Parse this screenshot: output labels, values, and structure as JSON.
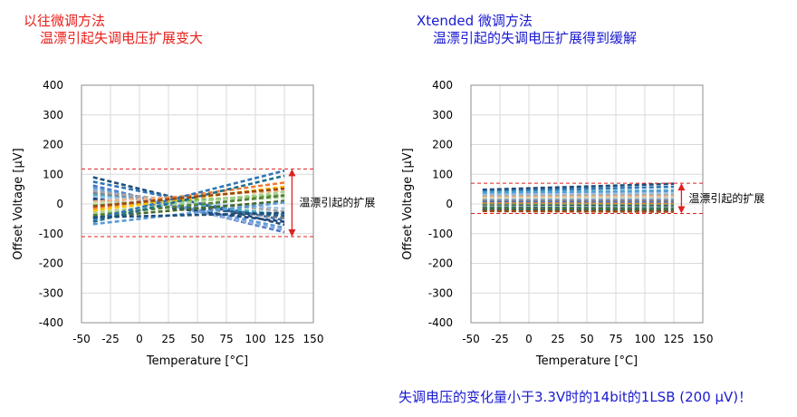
{
  "left_title": {
    "line1": "以往微调方法",
    "line2": "温漂引起失调电压扩展变大"
  },
  "right_title": {
    "line1": "Xtended 微调方法",
    "line2": "温漂引起的失调电压扩展得到缓解"
  },
  "footnote": "失调电压的变化量小于3.3V时的14bit的1LSB (200 µV)！",
  "colors": {
    "left_title": "#e8201c",
    "right_title": "#1a1ad0",
    "limit_line": "#e02020",
    "grid": "#d9d9d9"
  },
  "chart_data": [
    {
      "type": "line",
      "xlabel": "Temperature [°C]",
      "ylabel": "Offset Voltage [µV]",
      "xlim": [
        -50,
        150
      ],
      "ylim": [
        -400,
        400
      ],
      "xticks": [
        "-50",
        "-25",
        "0",
        "25",
        "50",
        "75",
        "100",
        "125",
        "150"
      ],
      "yticks": [
        "400",
        "300",
        "200",
        "100",
        "0",
        "-100",
        "-200",
        "-300",
        "-400"
      ],
      "grid": true,
      "spread_upper": 118,
      "spread_lower": -110,
      "annotation": "温漂引起的扩展",
      "series": [
        {
          "color": "#1f4e79",
          "x": [
            -40,
            125
          ],
          "y": [
            90,
            -70
          ]
        },
        {
          "color": "#2e75b6",
          "x": [
            -40,
            125
          ],
          "y": [
            75,
            -55
          ]
        },
        {
          "color": "#4472c4",
          "x": [
            -40,
            125
          ],
          "y": [
            62,
            -95
          ]
        },
        {
          "color": "#5b9bd5",
          "x": [
            -40,
            125
          ],
          "y": [
            55,
            -80
          ]
        },
        {
          "color": "#8faadc",
          "x": [
            -40,
            125
          ],
          "y": [
            48,
            -88
          ]
        },
        {
          "color": "#a5a5a5",
          "x": [
            -40,
            125
          ],
          "y": [
            42,
            -25
          ]
        },
        {
          "color": "#7f7f7f",
          "x": [
            -40,
            125
          ],
          "y": [
            36,
            -48
          ]
        },
        {
          "color": "#4bacc6",
          "x": [
            -40,
            125
          ],
          "y": [
            30,
            -35
          ]
        },
        {
          "color": "#9dc3e6",
          "x": [
            -40,
            125
          ],
          "y": [
            24,
            -15
          ]
        },
        {
          "color": "#264478",
          "x": [
            -40,
            125
          ],
          "y": [
            18,
            -60
          ]
        },
        {
          "color": "#255e91",
          "x": [
            -40,
            125
          ],
          "y": [
            12,
            -40
          ]
        },
        {
          "color": "#f4b183",
          "x": [
            -40,
            125
          ],
          "y": [
            8,
            45
          ]
        },
        {
          "color": "#c5e0b4",
          "x": [
            -40,
            125
          ],
          "y": [
            2,
            20
          ]
        },
        {
          "color": "#70ad47",
          "x": [
            -40,
            125
          ],
          "y": [
            -5,
            30
          ]
        },
        {
          "color": "#ed7d31",
          "x": [
            -40,
            125
          ],
          "y": [
            -15,
            72
          ]
        },
        {
          "color": "#ffc000",
          "x": [
            -40,
            125
          ],
          "y": [
            -22,
            58
          ]
        },
        {
          "color": "#a9d18e",
          "x": [
            -40,
            125
          ],
          "y": [
            -30,
            40
          ]
        },
        {
          "color": "#548235",
          "x": [
            -40,
            125
          ],
          "y": [
            -38,
            28
          ]
        },
        {
          "color": "#43682b",
          "x": [
            -40,
            125
          ],
          "y": [
            -45,
            10
          ]
        },
        {
          "color": "#2e75b6",
          "x": [
            -40,
            125
          ],
          "y": [
            -52,
            112
          ]
        },
        {
          "color": "#1f6f8b",
          "x": [
            -40,
            125
          ],
          "y": [
            -60,
            95
          ]
        },
        {
          "color": "#5b9bd5",
          "x": [
            -40,
            125
          ],
          "y": [
            -68,
            5
          ]
        },
        {
          "color": "#9e480e",
          "x": [
            -40,
            125
          ],
          "y": [
            -8,
            52
          ]
        },
        {
          "color": "#1f4e79",
          "x": [
            -40,
            125
          ],
          "y": [
            -45,
            -30
          ]
        }
      ]
    },
    {
      "type": "line",
      "xlabel": "Temperature [°C]",
      "ylabel": "Offset Voltage [µV]",
      "xlim": [
        -50,
        150
      ],
      "ylim": [
        -400,
        400
      ],
      "xticks": [
        "-50",
        "-25",
        "0",
        "25",
        "50",
        "75",
        "100",
        "125",
        "150"
      ],
      "yticks": [
        "400",
        "300",
        "200",
        "100",
        "0",
        "-100",
        "-200",
        "-300",
        "-400"
      ],
      "grid": true,
      "spread_upper": 70,
      "spread_lower": -32,
      "annotation": "温漂引起的扩展",
      "series": [
        {
          "color": "#1f4e79",
          "x": [
            -40,
            125
          ],
          "y": [
            48,
            68
          ]
        },
        {
          "color": "#2e75b6",
          "x": [
            -40,
            125
          ],
          "y": [
            42,
            58
          ]
        },
        {
          "color": "#4bacc6",
          "x": [
            -40,
            125
          ],
          "y": [
            38,
            46
          ]
        },
        {
          "color": "#5b9bd5",
          "x": [
            -40,
            125
          ],
          "y": [
            34,
            42
          ]
        },
        {
          "color": "#9dc3e6",
          "x": [
            -40,
            125
          ],
          "y": [
            30,
            36
          ]
        },
        {
          "color": "#a5a5a5",
          "x": [
            -40,
            125
          ],
          "y": [
            26,
            30
          ]
        },
        {
          "color": "#f4b183",
          "x": [
            -40,
            125
          ],
          "y": [
            22,
            25
          ]
        },
        {
          "color": "#c5e0b4",
          "x": [
            -40,
            125
          ],
          "y": [
            18,
            20
          ]
        },
        {
          "color": "#8faadc",
          "x": [
            -40,
            125
          ],
          "y": [
            14,
            16
          ]
        },
        {
          "color": "#7f7f7f",
          "x": [
            -40,
            125
          ],
          "y": [
            10,
            11
          ]
        },
        {
          "color": "#4472c4",
          "x": [
            -40,
            125
          ],
          "y": [
            6,
            4
          ]
        },
        {
          "color": "#ed7d31",
          "x": [
            -40,
            125
          ],
          "y": [
            2,
            0
          ]
        },
        {
          "color": "#70ad47",
          "x": [
            -40,
            125
          ],
          "y": [
            -2,
            -4
          ]
        },
        {
          "color": "#264478",
          "x": [
            -40,
            125
          ],
          "y": [
            -6,
            -8
          ]
        },
        {
          "color": "#a9d18e",
          "x": [
            -40,
            125
          ],
          "y": [
            -9,
            -12
          ]
        },
        {
          "color": "#255e91",
          "x": [
            -40,
            125
          ],
          "y": [
            -12,
            -15
          ]
        },
        {
          "color": "#548235",
          "x": [
            -40,
            125
          ],
          "y": [
            -15,
            -18
          ]
        },
        {
          "color": "#43682b",
          "x": [
            -40,
            125
          ],
          "y": [
            -18,
            -21
          ]
        },
        {
          "color": "#1f6f8b",
          "x": [
            -40,
            125
          ],
          "y": [
            -21,
            -24
          ]
        },
        {
          "color": "#9e480e",
          "x": [
            -40,
            125
          ],
          "y": [
            -24,
            -26
          ]
        }
      ]
    }
  ]
}
